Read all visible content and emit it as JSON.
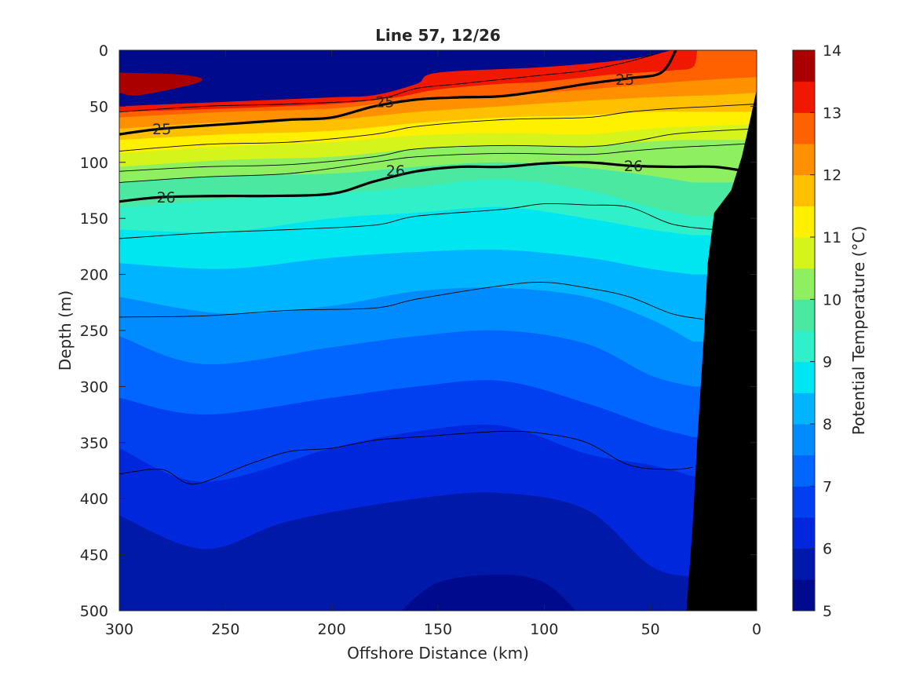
{
  "chart_data": {
    "type": "heatmap",
    "title": "Line 57, 12/26",
    "xlabel": "Offshore Distance (km)",
    "ylabel": "Depth (m)",
    "xlim": [
      300,
      0
    ],
    "ylim": [
      0,
      500
    ],
    "y_reversed": true,
    "x_reversed": true,
    "x_ticks": [
      "300",
      "250",
      "200",
      "150",
      "100",
      "50",
      "0"
    ],
    "y_ticks": [
      "0",
      "50",
      "100",
      "150",
      "200",
      "250",
      "300",
      "350",
      "400",
      "450",
      "500"
    ],
    "colorbar": {
      "label": "Potential Temperature (°C)",
      "range": [
        5,
        14
      ],
      "ticks": [
        "5",
        "6",
        "7",
        "8",
        "9",
        "10",
        "11",
        "12",
        "13",
        "14"
      ],
      "levels": [
        {
          "from": 5.0,
          "to": 5.5,
          "color": "#000a8c"
        },
        {
          "from": 5.5,
          "to": 6.0,
          "color": "#0019a8"
        },
        {
          "from": 6.0,
          "to": 6.5,
          "color": "#0027dc"
        },
        {
          "from": 6.5,
          "to": 7.0,
          "color": "#0040f0"
        },
        {
          "from": 7.0,
          "to": 7.5,
          "color": "#0066ff"
        },
        {
          "from": 7.5,
          "to": 8.0,
          "color": "#008cff"
        },
        {
          "from": 8.0,
          "to": 8.5,
          "color": "#00b4ff"
        },
        {
          "from": 8.5,
          "to": 9.0,
          "color": "#00e6f0"
        },
        {
          "from": 9.0,
          "to": 9.5,
          "color": "#2ff0c8"
        },
        {
          "from": 9.5,
          "to": 10.0,
          "color": "#4ae8a0"
        },
        {
          "from": 10.0,
          "to": 10.5,
          "color": "#8ef060"
        },
        {
          "from": 10.5,
          "to": 11.0,
          "color": "#d4f41c"
        },
        {
          "from": 11.0,
          "to": 11.5,
          "color": "#fff000"
        },
        {
          "from": 11.5,
          "to": 12.0,
          "color": "#ffc000"
        },
        {
          "from": 12.0,
          "to": 12.5,
          "color": "#ff9000"
        },
        {
          "from": 12.5,
          "to": 13.0,
          "color": "#ff6000"
        },
        {
          "from": 13.0,
          "to": 13.5,
          "color": "#f01800"
        },
        {
          "from": 13.5,
          "to": 14.0,
          "color": "#aa0000"
        }
      ]
    },
    "bands": [
      {
        "temp": 13.75,
        "color": "#aa0000",
        "depth": [
          [
            300,
            20
          ],
          [
            270,
            22
          ],
          [
            262,
            28
          ],
          [
            290,
            40
          ],
          [
            300,
            38
          ]
        ]
      },
      {
        "temp": 13.25,
        "color": "#f01800",
        "depth": [
          [
            300,
            50
          ],
          [
            250,
            46
          ],
          [
            200,
            42
          ],
          [
            180,
            40
          ],
          [
            160,
            30
          ],
          [
            150,
            20
          ],
          [
            100,
            15
          ],
          [
            60,
            8
          ],
          [
            40,
            0
          ]
        ]
      },
      {
        "temp": 12.75,
        "color": "#ff6000",
        "depth": [
          [
            300,
            55
          ],
          [
            250,
            52
          ],
          [
            200,
            48
          ],
          [
            170,
            42
          ],
          [
            150,
            35
          ],
          [
            120,
            30
          ],
          [
            100,
            28
          ],
          [
            70,
            22
          ],
          [
            40,
            18
          ],
          [
            30,
            15
          ],
          [
            28,
            0
          ]
        ]
      },
      {
        "temp": 12.25,
        "color": "#ff9000",
        "depth": [
          [
            300,
            60
          ],
          [
            250,
            55
          ],
          [
            200,
            52
          ],
          [
            160,
            44
          ],
          [
            120,
            40
          ],
          [
            80,
            35
          ],
          [
            50,
            30
          ],
          [
            20,
            26
          ],
          [
            0,
            24
          ]
        ]
      },
      {
        "temp": 11.75,
        "color": "#ffc000",
        "depth": [
          [
            300,
            70
          ],
          [
            250,
            64
          ],
          [
            200,
            62
          ],
          [
            160,
            55
          ],
          [
            120,
            50
          ],
          [
            80,
            45
          ],
          [
            50,
            42
          ],
          [
            20,
            40
          ],
          [
            0,
            38
          ]
        ]
      },
      {
        "temp": 11.25,
        "color": "#fff000",
        "depth": [
          [
            300,
            80
          ],
          [
            250,
            75
          ],
          [
            200,
            72
          ],
          [
            160,
            65
          ],
          [
            120,
            60
          ],
          [
            80,
            58
          ],
          [
            50,
            55
          ],
          [
            20,
            55
          ],
          [
            0,
            55
          ]
        ]
      },
      {
        "temp": 10.75,
        "color": "#d4f41c",
        "depth": [
          [
            300,
            92
          ],
          [
            250,
            86
          ],
          [
            200,
            82
          ],
          [
            160,
            76
          ],
          [
            120,
            74
          ],
          [
            80,
            75
          ],
          [
            50,
            70
          ],
          [
            30,
            68
          ],
          [
            0,
            66
          ]
        ]
      },
      {
        "temp": 10.25,
        "color": "#8ef060",
        "depth": [
          [
            300,
            104
          ],
          [
            250,
            98
          ],
          [
            200,
            95
          ],
          [
            160,
            88
          ],
          [
            120,
            85
          ],
          [
            80,
            86
          ],
          [
            55,
            82
          ],
          [
            35,
            80
          ]
        ]
      },
      {
        "temp": 9.75,
        "color": "#4ae8a0",
        "depth": [
          [
            300,
            118
          ],
          [
            250,
            112
          ],
          [
            200,
            110
          ],
          [
            160,
            104
          ],
          [
            120,
            100
          ],
          [
            80,
            105
          ],
          [
            50,
            112
          ],
          [
            30,
            118
          ]
        ]
      },
      {
        "temp": 9.25,
        "color": "#2ff0c8",
        "depth": [
          [
            300,
            140
          ],
          [
            250,
            133
          ],
          [
            200,
            128
          ],
          [
            160,
            122
          ],
          [
            120,
            115
          ],
          [
            80,
            125
          ],
          [
            50,
            140
          ],
          [
            30,
            148
          ]
        ]
      },
      {
        "temp": 8.75,
        "color": "#00e6f0",
        "depth": [
          [
            300,
            160
          ],
          [
            250,
            162
          ],
          [
            200,
            150
          ],
          [
            160,
            145
          ],
          [
            120,
            140
          ],
          [
            80,
            150
          ],
          [
            50,
            160
          ],
          [
            30,
            165
          ]
        ]
      },
      {
        "temp": 8.25,
        "color": "#00b4ff",
        "depth": [
          [
            300,
            190
          ],
          [
            250,
            195
          ],
          [
            200,
            185
          ],
          [
            160,
            180
          ],
          [
            120,
            178
          ],
          [
            80,
            185
          ],
          [
            50,
            195
          ],
          [
            30,
            200
          ]
        ]
      },
      {
        "temp": 7.75,
        "color": "#008cff",
        "depth": [
          [
            300,
            220
          ],
          [
            250,
            235
          ],
          [
            200,
            228
          ],
          [
            160,
            215
          ],
          [
            120,
            212
          ],
          [
            80,
            220
          ],
          [
            50,
            240
          ],
          [
            30,
            260
          ]
        ]
      },
      {
        "temp": 7.25,
        "color": "#0066ff",
        "depth": [
          [
            300,
            255
          ],
          [
            260,
            280
          ],
          [
            200,
            265
          ],
          [
            160,
            255
          ],
          [
            120,
            250
          ],
          [
            80,
            262
          ],
          [
            50,
            290
          ],
          [
            30,
            300
          ]
        ]
      },
      {
        "temp": 6.75,
        "color": "#0040f0",
        "depth": [
          [
            300,
            310
          ],
          [
            260,
            325
          ],
          [
            200,
            310
          ],
          [
            160,
            300
          ],
          [
            120,
            295
          ],
          [
            80,
            315
          ],
          [
            50,
            335
          ],
          [
            30,
            345
          ]
        ]
      },
      {
        "temp": 6.25,
        "color": "#0027dc",
        "depth": [
          [
            300,
            355
          ],
          [
            260,
            385
          ],
          [
            200,
            355
          ],
          [
            160,
            340
          ],
          [
            120,
            335
          ],
          [
            80,
            360
          ],
          [
            50,
            370
          ],
          [
            30,
            380
          ]
        ]
      },
      {
        "temp": 5.75,
        "color": "#0019a8",
        "depth": [
          [
            300,
            415
          ],
          [
            260,
            445
          ],
          [
            220,
            420
          ],
          [
            160,
            400
          ],
          [
            120,
            395
          ],
          [
            80,
            410
          ],
          [
            50,
            460
          ],
          [
            30,
            470
          ]
        ]
      },
      {
        "temp": 5.25,
        "color": "#000a8c",
        "depth": [
          [
            170,
            505
          ],
          [
            150,
            475
          ],
          [
            120,
            468
          ],
          [
            100,
            475
          ],
          [
            85,
            500
          ]
        ]
      }
    ],
    "density_contours": [
      {
        "value": 25,
        "depth": [
          [
            300,
            75
          ],
          [
            280,
            70
          ],
          [
            250,
            66
          ],
          [
            220,
            62
          ],
          [
            200,
            60
          ],
          [
            180,
            50
          ],
          [
            160,
            44
          ],
          [
            140,
            42
          ],
          [
            120,
            41
          ],
          [
            100,
            36
          ],
          [
            80,
            30
          ],
          [
            60,
            25
          ],
          [
            45,
            20
          ],
          [
            38,
            0
          ]
        ],
        "label_points": [
          [
            280,
            70
          ],
          [
            175,
            46
          ],
          [
            62,
            26
          ]
        ]
      },
      {
        "value": 26,
        "depth": [
          [
            300,
            135
          ],
          [
            280,
            131
          ],
          [
            250,
            130
          ],
          [
            230,
            130
          ],
          [
            200,
            128
          ],
          [
            180,
            117
          ],
          [
            160,
            108
          ],
          [
            140,
            104
          ],
          [
            120,
            104
          ],
          [
            100,
            101
          ],
          [
            80,
            100
          ],
          [
            60,
            103
          ],
          [
            40,
            104
          ],
          [
            20,
            104
          ],
          [
            5,
            108
          ]
        ],
        "label_points": [
          [
            278,
            131
          ],
          [
            170,
            107
          ],
          [
            58,
            103
          ]
        ]
      }
    ],
    "thin_contours": [
      [
        [
          300,
          55
        ],
        [
          260,
          50
        ],
        [
          220,
          48
        ],
        [
          180,
          44
        ],
        [
          160,
          34
        ],
        [
          140,
          30
        ],
        [
          100,
          22
        ],
        [
          80,
          18
        ],
        [
          60,
          10
        ],
        [
          45,
          2
        ]
      ],
      [
        [
          300,
          90
        ],
        [
          260,
          84
        ],
        [
          220,
          82
        ],
        [
          180,
          75
        ],
        [
          160,
          68
        ],
        [
          120,
          62
        ],
        [
          80,
          60
        ],
        [
          60,
          55
        ],
        [
          40,
          52
        ],
        [
          20,
          50
        ],
        [
          0,
          48
        ]
      ],
      [
        [
          300,
          108
        ],
        [
          260,
          104
        ],
        [
          220,
          102
        ],
        [
          180,
          95
        ],
        [
          160,
          88
        ],
        [
          120,
          85
        ],
        [
          80,
          86
        ],
        [
          60,
          82
        ],
        [
          40,
          75
        ],
        [
          20,
          72
        ],
        [
          0,
          70
        ]
      ],
      [
        [
          300,
          118
        ],
        [
          260,
          113
        ],
        [
          220,
          110
        ],
        [
          180,
          100
        ],
        [
          160,
          95
        ],
        [
          120,
          92
        ],
        [
          80,
          93
        ],
        [
          60,
          90
        ],
        [
          40,
          87
        ],
        [
          20,
          85
        ],
        [
          0,
          83
        ]
      ],
      [
        [
          300,
          168
        ],
        [
          260,
          163
        ],
        [
          220,
          160
        ],
        [
          180,
          156
        ],
        [
          160,
          148
        ],
        [
          120,
          142
        ],
        [
          100,
          137
        ],
        [
          80,
          138
        ],
        [
          60,
          140
        ],
        [
          40,
          155
        ],
        [
          20,
          160
        ]
      ],
      [
        [
          300,
          238
        ],
        [
          260,
          237
        ],
        [
          220,
          232
        ],
        [
          180,
          230
        ],
        [
          160,
          222
        ],
        [
          120,
          210
        ],
        [
          100,
          207
        ],
        [
          80,
          212
        ],
        [
          60,
          220
        ],
        [
          40,
          235
        ],
        [
          25,
          240
        ]
      ],
      [
        [
          300,
          378
        ],
        [
          280,
          374
        ],
        [
          265,
          387
        ],
        [
          240,
          370
        ],
        [
          220,
          358
        ],
        [
          200,
          355
        ],
        [
          180,
          348
        ],
        [
          160,
          345
        ],
        [
          120,
          340
        ],
        [
          100,
          342
        ],
        [
          80,
          350
        ],
        [
          60,
          370
        ],
        [
          40,
          374
        ],
        [
          30,
          372
        ]
      ]
    ],
    "bathymetry": [
      [
        33,
        500
      ],
      [
        30,
        420
      ],
      [
        28,
        350
      ],
      [
        25,
        260
      ],
      [
        23,
        190
      ],
      [
        20,
        145
      ],
      [
        12,
        125
      ],
      [
        7,
        95
      ],
      [
        4,
        70
      ],
      [
        0,
        35
      ],
      [
        0,
        500
      ]
    ]
  }
}
